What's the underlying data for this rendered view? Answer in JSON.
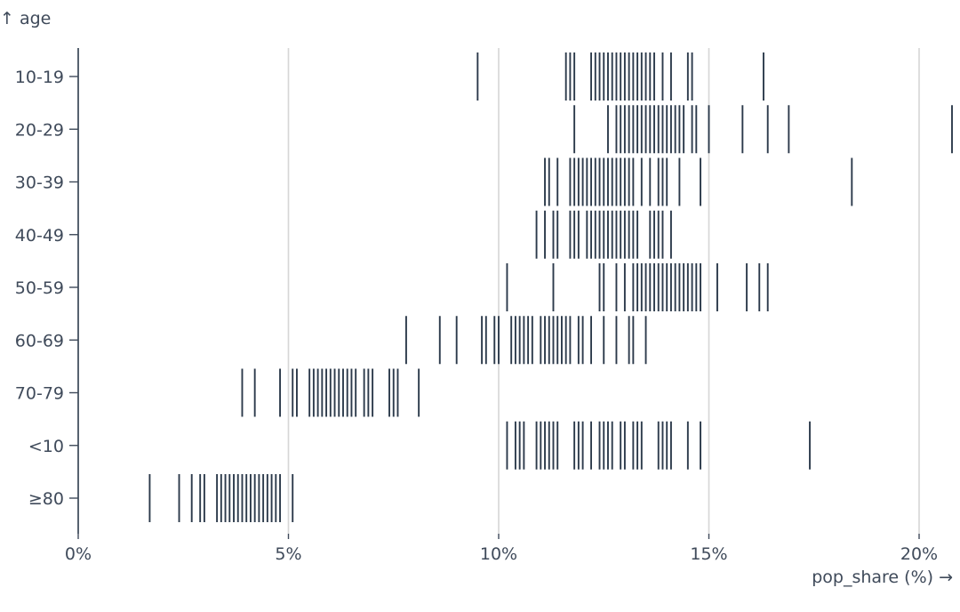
{
  "chart_data": {
    "type": "tick-strip",
    "xlabel": "pop_share (%) →",
    "ylabel": "↑ age",
    "xlim": [
      0,
      21
    ],
    "x_unit": "percent",
    "x_ticks": [
      "0%",
      "5%",
      "10%",
      "15%",
      "20%"
    ],
    "grid": "vertical",
    "color": "#2c3a4b",
    "categories": [
      "10-19",
      "20-29",
      "30-39",
      "40-49",
      "50-59",
      "60-69",
      "70-79",
      "<10",
      "≥80"
    ],
    "series": [
      {
        "category": "10-19",
        "values": [
          9.5,
          11.6,
          11.7,
          11.8,
          12.2,
          12.3,
          12.4,
          12.5,
          12.6,
          12.7,
          12.8,
          12.9,
          13.0,
          13.1,
          13.2,
          13.3,
          13.4,
          13.5,
          13.6,
          13.7,
          13.9,
          14.1,
          14.5,
          14.6,
          16.3
        ]
      },
      {
        "category": "20-29",
        "values": [
          11.8,
          12.6,
          12.8,
          12.9,
          13.0,
          13.1,
          13.2,
          13.3,
          13.4,
          13.5,
          13.6,
          13.7,
          13.8,
          13.9,
          14.0,
          14.1,
          14.2,
          14.3,
          14.4,
          14.6,
          14.7,
          15.0,
          15.8,
          16.4,
          16.9,
          20.8
        ]
      },
      {
        "category": "30-39",
        "values": [
          11.1,
          11.2,
          11.4,
          11.7,
          11.8,
          11.9,
          12.0,
          12.1,
          12.2,
          12.3,
          12.4,
          12.5,
          12.6,
          12.7,
          12.8,
          12.9,
          13.0,
          13.1,
          13.2,
          13.4,
          13.6,
          13.8,
          13.9,
          14.0,
          14.3,
          14.8,
          18.4
        ]
      },
      {
        "category": "40-49",
        "values": [
          10.9,
          11.1,
          11.3,
          11.4,
          11.7,
          11.8,
          11.9,
          12.1,
          12.2,
          12.3,
          12.4,
          12.5,
          12.6,
          12.7,
          12.8,
          12.9,
          13.0,
          13.1,
          13.2,
          13.3,
          13.6,
          13.7,
          13.8,
          13.9,
          14.1
        ]
      },
      {
        "category": "50-59",
        "values": [
          10.2,
          11.3,
          12.4,
          12.5,
          12.8,
          13.0,
          13.2,
          13.3,
          13.4,
          13.5,
          13.6,
          13.7,
          13.8,
          13.9,
          14.0,
          14.1,
          14.2,
          14.3,
          14.4,
          14.5,
          14.6,
          14.7,
          14.8,
          15.2,
          15.9,
          16.2,
          16.4
        ]
      },
      {
        "category": "60-69",
        "values": [
          7.8,
          8.6,
          9.0,
          9.6,
          9.7,
          9.9,
          10.0,
          10.3,
          10.4,
          10.5,
          10.6,
          10.7,
          10.8,
          11.0,
          11.1,
          11.2,
          11.3,
          11.4,
          11.5,
          11.6,
          11.7,
          11.9,
          12.0,
          12.2,
          12.5,
          12.8,
          13.1,
          13.2,
          13.5
        ]
      },
      {
        "category": "70-79",
        "values": [
          3.9,
          4.2,
          4.8,
          5.1,
          5.2,
          5.5,
          5.6,
          5.7,
          5.8,
          5.9,
          6.0,
          6.1,
          6.2,
          6.3,
          6.4,
          6.5,
          6.6,
          6.8,
          6.9,
          7.0,
          7.4,
          7.5,
          7.6,
          8.1
        ]
      },
      {
        "category": "<10",
        "values": [
          10.2,
          10.4,
          10.5,
          10.6,
          10.9,
          11.0,
          11.1,
          11.2,
          11.3,
          11.4,
          11.8,
          11.9,
          12.0,
          12.2,
          12.4,
          12.5,
          12.6,
          12.7,
          12.9,
          13.0,
          13.2,
          13.3,
          13.4,
          13.8,
          13.9,
          14.0,
          14.1,
          14.5,
          14.8,
          17.4
        ]
      },
      {
        "category": "≥80",
        "values": [
          1.7,
          2.4,
          2.7,
          2.9,
          3.0,
          3.3,
          3.4,
          3.5,
          3.6,
          3.7,
          3.8,
          3.9,
          4.0,
          4.1,
          4.2,
          4.3,
          4.4,
          4.5,
          4.6,
          4.7,
          4.8,
          5.1
        ]
      }
    ]
  }
}
